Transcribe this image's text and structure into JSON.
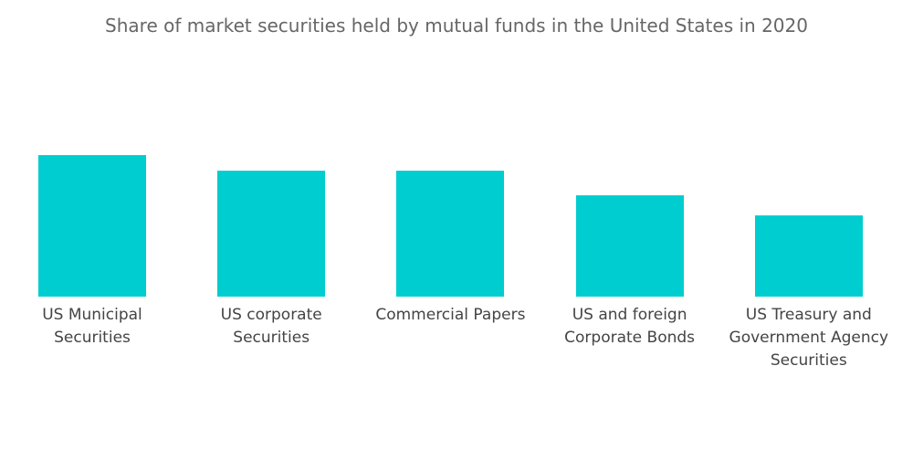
{
  "chart_data": {
    "type": "bar",
    "title": "Share of market securities held by mutual funds in the United States in 2020",
    "categories": [
      "US Municipal Securities",
      "US corporate Securities",
      "Commercial Papers",
      "US and foreign Corporate Bonds",
      "US Treasury and Government Agency Securities"
    ],
    "values": [
      28,
      25,
      25,
      20,
      16
    ],
    "color": "#00cdcf"
  }
}
